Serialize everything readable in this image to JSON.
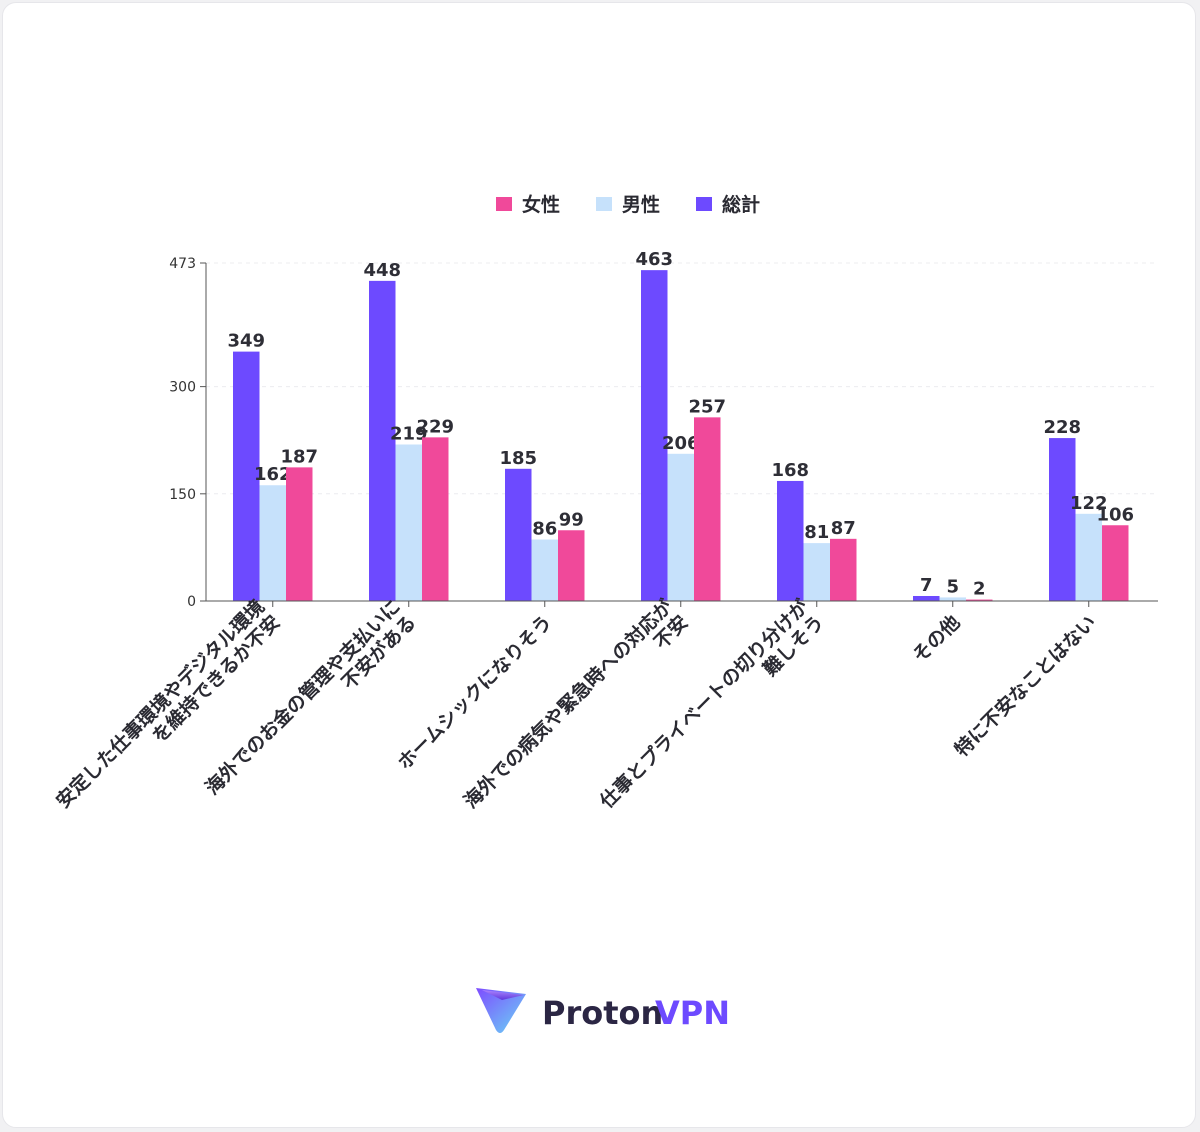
{
  "chart_data": {
    "type": "bar",
    "title": "",
    "categories": [
      [
        "安定した仕事環境やデジタル環境",
        "を維持できるか不安"
      ],
      [
        "海外でのお金の管理や支払いに",
        "不安がある"
      ],
      [
        "ホームシックになりそう"
      ],
      [
        "海外での病気や緊急時への対応が",
        "不安"
      ],
      [
        "仕事とプライベートの切り分けが",
        "難しそう"
      ],
      [
        "その他"
      ],
      [
        "特に不安なことはない"
      ]
    ],
    "series": [
      {
        "name": "総計",
        "color": "#6d4aff",
        "values": [
          349,
          448,
          185,
          463,
          168,
          7,
          228
        ]
      },
      {
        "name": "男性",
        "color": "#c6e1fb",
        "values": [
          162,
          219,
          86,
          206,
          81,
          5,
          122
        ]
      },
      {
        "name": "女性",
        "color": "#f0499a",
        "values": [
          187,
          229,
          99,
          257,
          87,
          2,
          106
        ]
      }
    ],
    "legend_order": [
      "女性",
      "男性",
      "総計"
    ],
    "legend_position": "top-center",
    "y_ticks": [
      0,
      150,
      300,
      473
    ],
    "ylim": [
      0,
      473
    ],
    "grid": true,
    "xlabel": "",
    "ylabel": ""
  },
  "brand": {
    "name_part1": "Proton",
    "name_part2": "VPN",
    "icon": "proton-vpn-logo-icon",
    "color_dark": "#2b2644",
    "color_accent": "#6d4aff"
  }
}
